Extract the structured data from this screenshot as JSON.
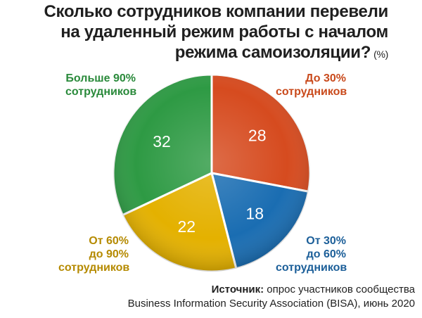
{
  "title": {
    "line1": "Сколько сотрудников компании перевели",
    "line2": "на удаленный режим работы с началом",
    "line3": "режима самоизоляции?",
    "unit": "(%)"
  },
  "chart_data": {
    "type": "pie",
    "unit": "%",
    "slices": [
      {
        "label_lines": [
          "До 30%",
          "сотрудников"
        ],
        "value": 28,
        "color": "#d64b1f"
      },
      {
        "label_lines": [
          "От 30%",
          "до 60%",
          "сотрудников"
        ],
        "value": 18,
        "color": "#1a6db2"
      },
      {
        "label_lines": [
          "От 60%",
          "до 90%",
          "сотрудников"
        ],
        "value": 22,
        "color": "#e4b100"
      },
      {
        "label_lines": [
          "Больше 90%",
          "сотрудников"
        ],
        "value": 32,
        "color": "#2e9a44"
      }
    ]
  },
  "source": {
    "prefix": "Источник:",
    "line1_rest": "опрос участников сообщества",
    "line2": "Business Information Security Association (BISA), июнь 2020"
  }
}
